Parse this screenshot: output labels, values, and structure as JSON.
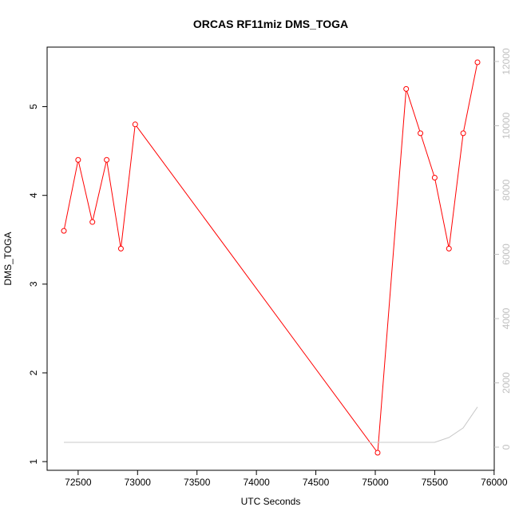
{
  "chart_data": {
    "type": "line",
    "title": "ORCAS RF11miz DMS_TOGA",
    "xlabel": "UTC Seconds",
    "ylabel": "DMS_TOGA",
    "xlim": [
      72250,
      76000
    ],
    "ylim": [
      1,
      5.5
    ],
    "y2lim": [
      -100,
      12300
    ],
    "x_ticks": [
      72500,
      73000,
      73500,
      74000,
      74500,
      75000,
      75500,
      76000
    ],
    "y_ticks": [
      1,
      2,
      3,
      4,
      5
    ],
    "y2_ticks": [
      0,
      2000,
      4000,
      6000,
      8000,
      10000,
      12000
    ],
    "grid": false,
    "series": [
      {
        "axis": "left",
        "color": "#ff0000",
        "markers": true,
        "x": [
          72380,
          72500,
          72620,
          72740,
          72860,
          72980,
          75020,
          75260,
          75380,
          75500,
          75620,
          75740,
          75860
        ],
        "y": [
          3.6,
          4.4,
          3.7,
          4.4,
          3.4,
          4.8,
          1.1,
          5.2,
          4.7,
          4.2,
          3.4,
          4.7,
          5.5
        ]
      },
      {
        "axis": "right",
        "color": "#c8c8c8",
        "markers": false,
        "x": [
          72380,
          73000,
          73500,
          74000,
          74500,
          75000,
          75260,
          75500,
          75620,
          75740,
          75860
        ],
        "y": [
          150,
          150,
          150,
          150,
          150,
          150,
          150,
          150,
          300,
          600,
          1250
        ]
      }
    ]
  }
}
